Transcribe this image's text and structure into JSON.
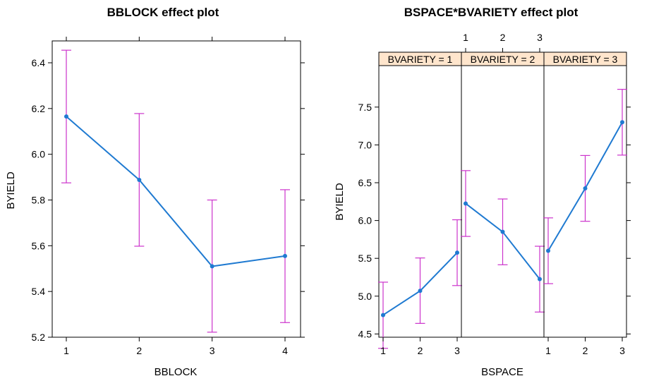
{
  "colors": {
    "line": "#1f7ad1",
    "errorbar": "#cc33cc",
    "strip": "#ffe5cc",
    "frame": "#000000"
  },
  "chart_data": [
    {
      "type": "line",
      "title": "BBLOCK effect plot",
      "xlabel": "BBLOCK",
      "ylabel": "BYIELD",
      "categories": [
        "1",
        "2",
        "3",
        "4"
      ],
      "values": [
        6.165,
        5.888,
        5.51,
        5.555
      ],
      "lower": [
        5.875,
        5.598,
        5.222,
        5.264
      ],
      "upper": [
        6.455,
        6.178,
        5.8,
        5.845
      ],
      "ylim": [
        5.2,
        6.45
      ],
      "yticks": [
        "5.2",
        "5.4",
        "5.6",
        "5.8",
        "6.0",
        "6.2",
        "6.4"
      ],
      "grid": false
    },
    {
      "type": "line",
      "title": "BSPACE*BVARIETY effect plot",
      "xlabel": "BSPACE",
      "ylabel": "BYIELD",
      "ylim": [
        4.2,
        7.85
      ],
      "yticks": [
        "4.5",
        "5.0",
        "5.5",
        "6.0",
        "6.5",
        "7.0",
        "7.5"
      ],
      "grid": false,
      "panels": [
        {
          "strip": "BVARIETY = 1",
          "x": [
            "1",
            "2",
            "3"
          ],
          "values": [
            4.75,
            5.07,
            5.575
          ],
          "lower": [
            4.31,
            4.64,
            5.14
          ],
          "upper": [
            5.185,
            5.505,
            6.01
          ]
        },
        {
          "strip": "BVARIETY = 2",
          "x": [
            "1",
            "2",
            "3"
          ],
          "values": [
            6.225,
            5.85,
            5.225
          ],
          "lower": [
            5.79,
            5.415,
            4.79
          ],
          "upper": [
            6.66,
            6.285,
            5.66
          ]
        },
        {
          "strip": "BVARIETY = 3",
          "x": [
            "1",
            "2",
            "3"
          ],
          "values": [
            5.6,
            6.425,
            7.3
          ],
          "lower": [
            5.165,
            5.99,
            6.865
          ],
          "upper": [
            6.035,
            6.86,
            7.735
          ]
        }
      ]
    }
  ]
}
